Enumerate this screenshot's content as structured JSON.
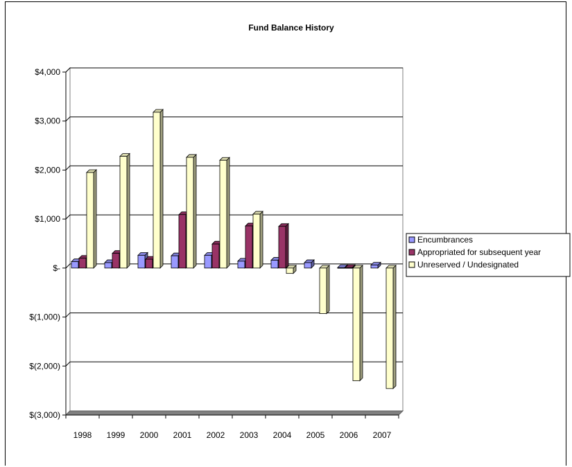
{
  "chart_data": {
    "type": "bar",
    "title": "Fund Balance History",
    "categories": [
      "1998",
      "1999",
      "2000",
      "2001",
      "2002",
      "2003",
      "2004",
      "2005",
      "2006",
      "2007"
    ],
    "series": [
      {
        "name": "Encumbrances",
        "color": "#9999ff",
        "values": [
          130,
          110,
          260,
          250,
          260,
          140,
          160,
          110,
          10,
          60
        ]
      },
      {
        "name": "Appropriated for subsequent year",
        "color": "#993366",
        "values": [
          200,
          300,
          180,
          1090,
          490,
          860,
          850,
          0,
          10,
          0
        ]
      },
      {
        "name": "Unreserved / Undesignated",
        "color": "#ffffcc",
        "values": [
          1950,
          2280,
          3180,
          2260,
          2200,
          1100,
          -110,
          -930,
          -2300,
          -2460
        ]
      }
    ],
    "y_ticks": [
      4000,
      3000,
      2000,
      1000,
      0,
      -1000,
      -2000,
      -3000
    ],
    "y_tick_labels": [
      "$4,000",
      "$3,000",
      "$2,000",
      "$1,000",
      "$-",
      "$(1,000)",
      "$(2,000)",
      "$(3,000)"
    ],
    "ylim": [
      -3000,
      4000
    ],
    "grid": true,
    "legend": "right"
  }
}
